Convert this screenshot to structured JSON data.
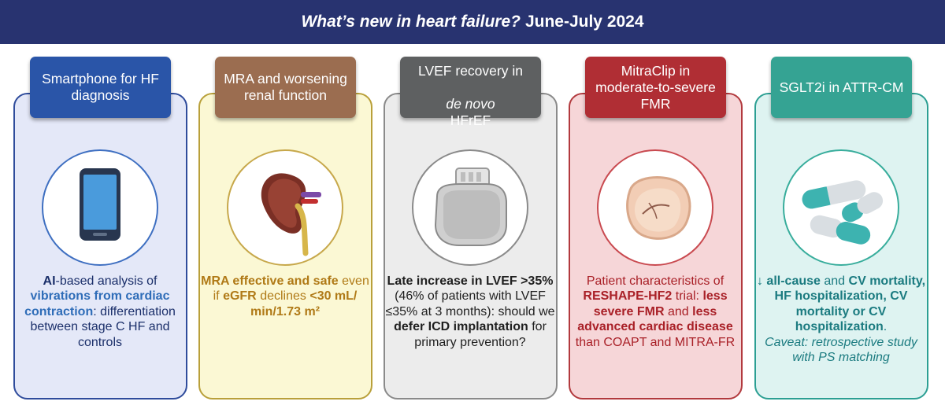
{
  "banner": {
    "title_italic": "What’s new in heart failure?",
    "title_rest": "June-July 2024"
  },
  "cards": [
    {
      "header": "Smartphone for HF\ndiagnosis",
      "icon": "smartphone-icon",
      "text": {
        "p1": "AI",
        "p2": "-based analysis of",
        "p3": "vibrations from cardiac contraction",
        "p4": ":",
        "p5": "differentiation between stage C HF and controls"
      },
      "colors": {
        "accent": "#2a55a8",
        "background": "#e4e8f8"
      }
    },
    {
      "header": "MRA and worsening\nrenal function",
      "icon": "kidney-icon",
      "text": {
        "p1": "MRA effective and safe",
        "p2": "even if",
        "p3": "eGFR",
        "p4": "declines",
        "p5": "<30 mL/ min/1.73 m²"
      },
      "colors": {
        "accent": "#9b6d50",
        "background": "#fbf8d4"
      }
    },
    {
      "header_line1": "LVEF recovery in",
      "header_italic": "de novo",
      "header_rest": "HFrEF",
      "icon": "icd-device-icon",
      "text": {
        "p1": "Late increase in LVEF >35%",
        "p2": "(46% of patients with LVEF ≤35% at 3 months):",
        "p3": "should we",
        "p4": "defer ICD implantation",
        "p5": "for primary prevention?"
      },
      "colors": {
        "accent": "#5e6061",
        "background": "#ececec"
      }
    },
    {
      "header": "MitraClip in\nmoderate-to-severe\nFMR",
      "icon": "mitral-valve-icon",
      "text": {
        "p1": "Patient characteristics of",
        "p2": "RESHAPE-HF2",
        "p3": "trial:",
        "p4": "less severe FMR",
        "p5": "and",
        "p6": "less advanced cardiac disease",
        "p7": "than COAPT and MITRA-FR"
      },
      "colors": {
        "accent": "#b02e34",
        "background": "#f6d6d8"
      }
    },
    {
      "header": "SGLT2i in ATTR-CM",
      "icon": "capsules-icon",
      "text": {
        "arrow": "↓",
        "p1": "all-cause",
        "p2": "and",
        "p3": "CV mortality, HF hospitalization, CV mortality or CV hospitalization",
        "p4": ".",
        "caveat": "Caveat: retrospective study with PS matching"
      },
      "colors": {
        "accent": "#35a393",
        "background": "#def3f1"
      }
    }
  ]
}
